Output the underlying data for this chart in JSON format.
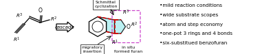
{
  "background_color": "#ffffff",
  "bullet_points": [
    "mild reaction conditions",
    "wide substrate scopes",
    "atom and step economy",
    "one-pot 3 rings and 4 bonds",
    "six-substitued benzofuran"
  ],
  "arrow_label": "cascade",
  "schmittel_label": "Schmittel\ncyclization",
  "migratory_label": "migratory\ninsertion",
  "insitu_label": "in situ\nformed furan",
  "cyan_fill": "#b0eef0",
  "magenta_box": "#cc44cc",
  "red_bonds": "#dd0000"
}
